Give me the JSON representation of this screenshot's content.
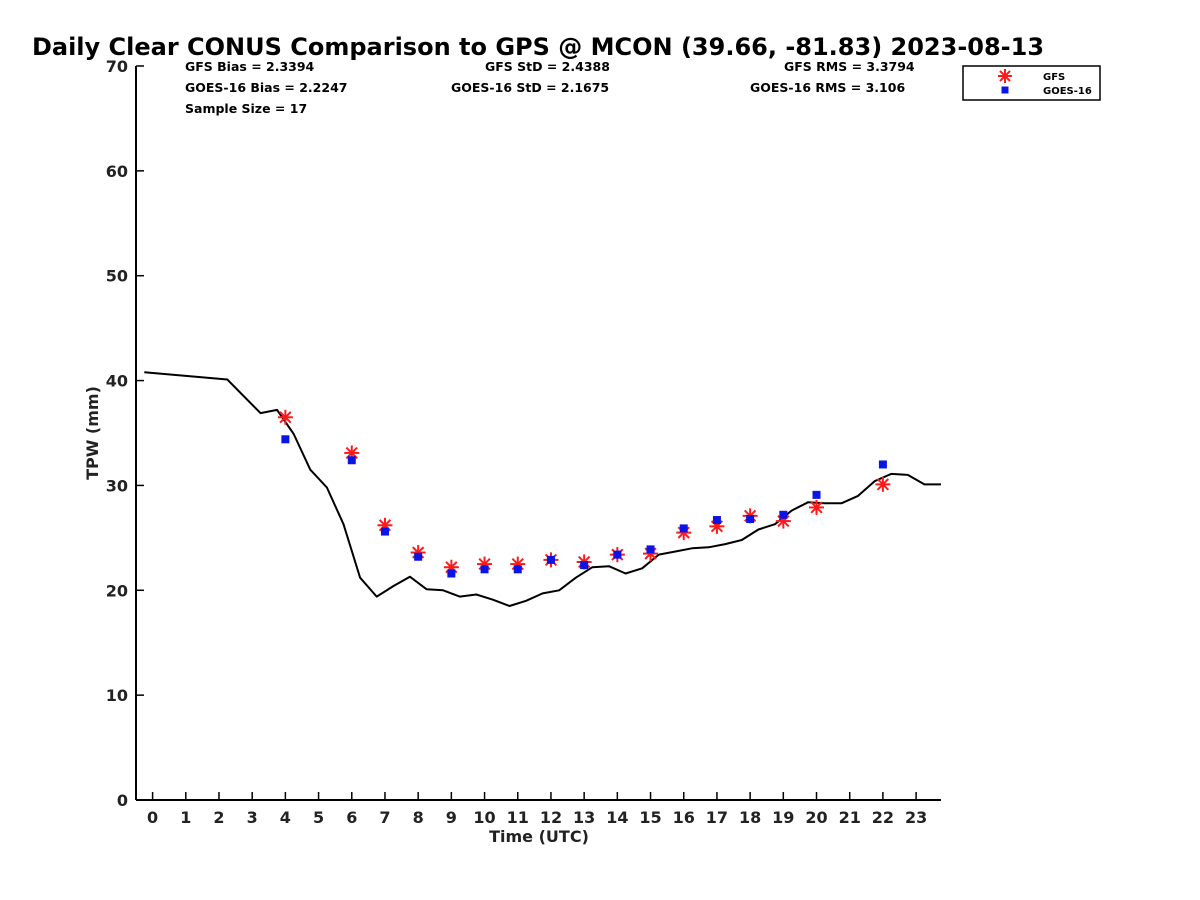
{
  "chart_data": {
    "type": "scatter",
    "title": "Daily Clear CONUS Comparison to GPS @ MCON (39.66, -81.83) 2023-08-13",
    "xlabel": "Time (UTC)",
    "ylabel": "TPW (mm)",
    "xlim": [
      -0.5,
      23.75
    ],
    "ylim": [
      0,
      70
    ],
    "x_ticks": [
      0,
      1,
      2,
      3,
      4,
      5,
      6,
      7,
      8,
      9,
      10,
      11,
      12,
      13,
      14,
      15,
      16,
      17,
      18,
      19,
      20,
      21,
      22,
      23
    ],
    "y_ticks": [
      0,
      10,
      20,
      30,
      40,
      50,
      60,
      70
    ],
    "grid": false,
    "legend_position": "top-right",
    "stats": {
      "gfs_bias": "GFS Bias = 2.3394",
      "gfs_std": "GFS StD = 2.4388",
      "gfs_rms": "GFS RMS = 3.3794",
      "goes_bias": "GOES-16 Bias = 2.2247",
      "goes_std": "GOES-16 StD = 2.1675",
      "goes_rms": "GOES-16 RMS = 3.106",
      "sample_size": "Sample Size = 17"
    },
    "gps_line": {
      "color": "#000000",
      "x": [
        -0.25,
        2.25,
        3.25,
        3.75,
        4.25,
        4.75,
        5.25,
        5.75,
        6.25,
        6.75,
        7.25,
        7.75,
        8.25,
        8.75,
        9.25,
        9.75,
        10.25,
        10.75,
        11.25,
        11.75,
        12.25,
        12.75,
        13.25,
        13.75,
        14.25,
        14.75,
        15.25,
        15.75,
        16.25,
        16.75,
        17.25,
        17.75,
        18.25,
        18.75,
        19.25,
        19.75,
        20.25,
        20.75,
        21.25,
        21.75,
        22.25,
        22.75,
        23.25,
        23.75
      ],
      "y": [
        40.8,
        40.1,
        36.9,
        37.2,
        34.9,
        31.5,
        29.8,
        26.3,
        21.2,
        19.4,
        20.4,
        21.3,
        20.1,
        20.0,
        19.4,
        19.6,
        19.1,
        18.5,
        19.0,
        19.7,
        20.0,
        21.2,
        22.2,
        22.3,
        21.6,
        22.1,
        23.4,
        23.7,
        24.0,
        24.1,
        24.4,
        24.8,
        25.8,
        26.3,
        27.6,
        28.4,
        28.3,
        28.3,
        29.0,
        30.4,
        31.1,
        31.0,
        30.1,
        30.1
      ]
    },
    "series": [
      {
        "name": "GFS",
        "marker": "asterisk",
        "color": "#ff1a1a",
        "x": [
          4,
          6,
          7,
          8,
          9,
          10,
          11,
          12,
          13,
          14,
          15,
          16,
          17,
          18,
          19,
          20,
          22
        ],
        "y": [
          36.5,
          33.1,
          26.2,
          23.6,
          22.2,
          22.5,
          22.5,
          22.9,
          22.7,
          23.4,
          23.5,
          25.5,
          26.1,
          27.1,
          26.6,
          27.9,
          30.1
        ]
      },
      {
        "name": "GOES-16",
        "marker": "square",
        "color": "#0a14e6",
        "x": [
          4,
          6,
          7,
          8,
          9,
          10,
          11,
          12,
          13,
          14,
          15,
          16,
          17,
          18,
          19,
          20,
          22
        ],
        "y": [
          34.4,
          32.4,
          25.6,
          23.2,
          21.6,
          22.0,
          22.0,
          22.9,
          22.4,
          23.4,
          23.9,
          25.9,
          26.7,
          26.8,
          27.2,
          29.1,
          32.0
        ]
      }
    ]
  }
}
